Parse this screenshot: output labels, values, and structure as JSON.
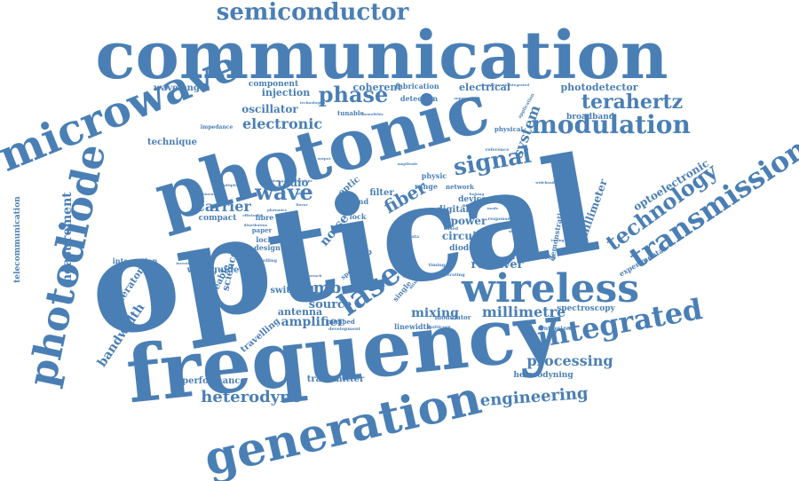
{
  "color": "#4a7fb5",
  "words": [
    {
      "text": "optical",
      "size": "xxl"
    },
    {
      "text": "frequency",
      "size": "xl"
    },
    {
      "text": "communication",
      "size": "xl"
    },
    {
      "text": "photonic",
      "size": "xl"
    },
    {
      "text": "generation",
      "size": "l"
    },
    {
      "text": "wireless",
      "size": "l"
    },
    {
      "text": "microwave",
      "size": "l"
    },
    {
      "text": "photodiode",
      "size": "l"
    },
    {
      "text": "transmission",
      "size": "m"
    },
    {
      "text": "integrated",
      "size": "m"
    },
    {
      "text": "semiconductor",
      "size": "m"
    },
    {
      "text": "laser",
      "size": "m"
    },
    {
      "text": "modulation",
      "size": "m"
    },
    {
      "text": "technology",
      "size": "m"
    },
    {
      "text": "signal",
      "size": "m"
    },
    {
      "text": "phase",
      "size": "m"
    },
    {
      "text": "terahertz",
      "size": "m"
    },
    {
      "text": "wave",
      "size": "m"
    },
    {
      "text": "fiber",
      "size": "m"
    },
    {
      "text": "system",
      "size": "m"
    },
    {
      "text": "heterodyne",
      "size": "s"
    },
    {
      "text": "engineering",
      "size": "s"
    },
    {
      "text": "processing",
      "size": "s"
    },
    {
      "text": "millimetre",
      "size": "s"
    },
    {
      "text": "comb",
      "size": "s"
    },
    {
      "text": "carrier",
      "size": "s"
    },
    {
      "text": "electronic",
      "size": "s"
    },
    {
      "text": "measurement",
      "size": "s"
    },
    {
      "text": "bandwidth",
      "size": "s"
    },
    {
      "text": "optoelectronic",
      "size": "s"
    },
    {
      "text": "millimeter",
      "size": "s"
    },
    {
      "text": "receiver",
      "size": "s"
    },
    {
      "text": "mixing",
      "size": "s"
    },
    {
      "text": "amplifier",
      "size": "s"
    },
    {
      "text": "source",
      "size": "s"
    },
    {
      "text": "noise",
      "size": "s"
    },
    {
      "text": "power",
      "size": "s"
    },
    {
      "text": "circuit",
      "size": "s"
    },
    {
      "text": "radio",
      "size": "s"
    },
    {
      "text": "oscillator",
      "size": "xs"
    },
    {
      "text": "injection",
      "size": "xs"
    },
    {
      "text": "coherent",
      "size": "xs"
    },
    {
      "text": "electrical",
      "size": "xs"
    },
    {
      "text": "photodetector",
      "size": "xs"
    },
    {
      "text": "wavelength",
      "size": "xs"
    },
    {
      "text": "component",
      "size": "xs"
    },
    {
      "text": "fabrication",
      "size": "xs"
    },
    {
      "text": "detection",
      "size": "xs"
    },
    {
      "text": "broadband",
      "size": "xs"
    },
    {
      "text": "technique",
      "size": "xs"
    },
    {
      "text": "generator",
      "size": "xs"
    },
    {
      "text": "science",
      "size": "xs"
    },
    {
      "text": "tuneable",
      "size": "xs"
    },
    {
      "text": "waveguide",
      "size": "xs"
    },
    {
      "text": "performance",
      "size": "xs"
    },
    {
      "text": "transmitter",
      "size": "xs"
    },
    {
      "text": "switched",
      "size": "xs"
    },
    {
      "text": "antenna",
      "size": "xs"
    },
    {
      "text": "travelling",
      "size": "xs"
    },
    {
      "text": "spectroscopy",
      "size": "xs"
    },
    {
      "text": "heterodyning",
      "size": "xs"
    },
    {
      "text": "experimental",
      "size": "xs"
    },
    {
      "text": "frequencies",
      "size": "xs"
    },
    {
      "text": "demonstration",
      "size": "xs"
    },
    {
      "text": "telecommunication",
      "size": "xs"
    },
    {
      "text": "integration",
      "size": "xs"
    },
    {
      "text": "compact",
      "size": "xs"
    },
    {
      "text": "digital",
      "size": "xs"
    },
    {
      "text": "device",
      "size": "xs"
    },
    {
      "text": "filter",
      "size": "xs"
    },
    {
      "text": "optic",
      "size": "xs"
    },
    {
      "text": "band",
      "size": "xs"
    },
    {
      "text": "lock",
      "size": "xs"
    },
    {
      "text": "loop",
      "size": "xs"
    },
    {
      "text": "diode",
      "size": "xs"
    },
    {
      "text": "fibre",
      "size": "xs"
    },
    {
      "text": "locked",
      "size": "xs"
    },
    {
      "text": "design",
      "size": "xs"
    },
    {
      "text": "paper",
      "size": "xs"
    },
    {
      "text": "linewidth",
      "size": "xs"
    },
    {
      "text": "modulator",
      "size": "xs"
    },
    {
      "text": "pumped",
      "size": "xs"
    },
    {
      "text": "range",
      "size": "xs"
    },
    {
      "text": "network",
      "size": "xs"
    },
    {
      "text": "physic",
      "size": "xs"
    },
    {
      "text": "physical",
      "size": "xs"
    },
    {
      "text": "tunable",
      "size": "xs"
    },
    {
      "text": "impedance",
      "size": "xs"
    },
    {
      "text": "synthesizer",
      "size": "xs"
    },
    {
      "text": "multicore",
      "size": "xs"
    },
    {
      "text": "development",
      "size": "xs"
    },
    {
      "text": "operating",
      "size": "xs"
    },
    {
      "text": "reference",
      "size": "xs"
    },
    {
      "text": "suppression",
      "size": "xs"
    },
    {
      "text": "application",
      "size": "xs"
    },
    {
      "text": "technologies",
      "size": "xs"
    },
    {
      "text": "monolithic",
      "size": "xs"
    },
    {
      "text": "investigation",
      "size": "xs"
    },
    {
      "text": "based",
      "size": "xs"
    },
    {
      "text": "response",
      "size": "xs"
    },
    {
      "text": "timing",
      "size": "xs"
    },
    {
      "text": "modelling",
      "size": "xs"
    },
    {
      "text": "efficiency",
      "size": "xs"
    },
    {
      "text": "spectral",
      "size": "xs"
    },
    {
      "text": "envelope",
      "size": "xs"
    },
    {
      "text": "emission",
      "size": "xs"
    },
    {
      "text": "output",
      "size": "xs"
    },
    {
      "text": "mixer",
      "size": "xs"
    },
    {
      "text": "single",
      "size": "xs"
    },
    {
      "text": "speed",
      "size": "xs"
    },
    {
      "text": "approach",
      "size": "xs"
    },
    {
      "text": "amplitude",
      "size": "xs"
    },
    {
      "text": "distribution",
      "size": "xs"
    },
    {
      "text": "implementation",
      "size": "xs"
    },
    {
      "text": "multiplexing",
      "size": "xs"
    },
    {
      "text": "photonics",
      "size": "xs"
    },
    {
      "text": "locking",
      "size": "xs"
    },
    {
      "text": "different",
      "size": "xs"
    },
    {
      "text": "optoelectronicintegrated",
      "size": "xs"
    },
    {
      "text": "wideband",
      "size": "xs"
    },
    {
      "text": "sideband",
      "size": "xs"
    },
    {
      "text": "tuning",
      "size": "xs"
    },
    {
      "text": "linear",
      "size": "xs"
    },
    {
      "text": "dual",
      "size": "xs"
    },
    {
      "text": "mode",
      "size": "xs"
    },
    {
      "text": "high",
      "size": "xs"
    },
    {
      "text": "data",
      "size": "xs"
    },
    {
      "text": "line",
      "size": "xs"
    }
  ]
}
